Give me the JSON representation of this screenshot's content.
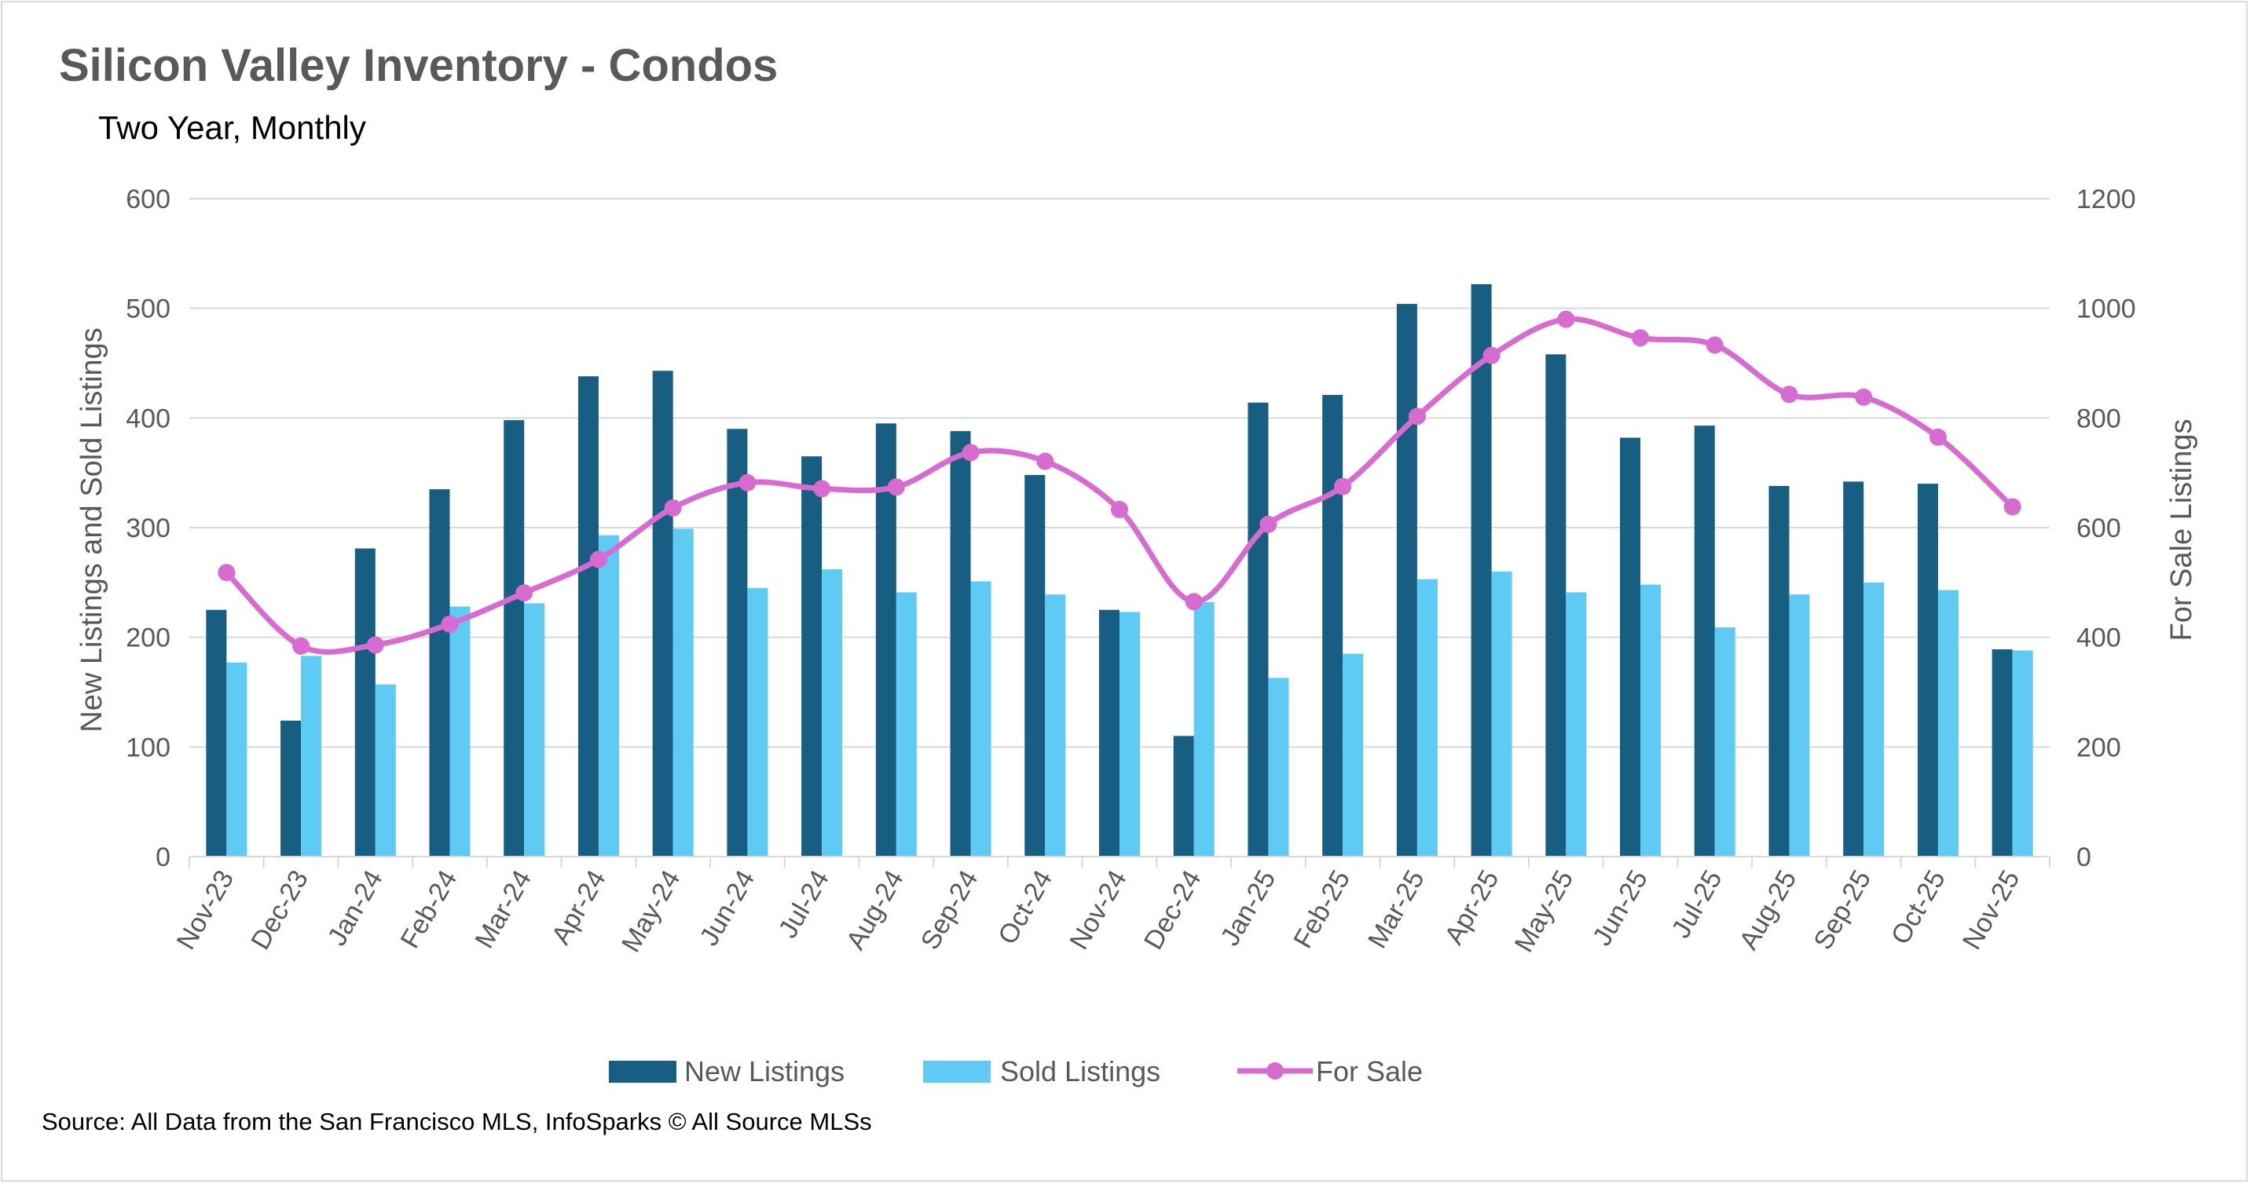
{
  "colors": {
    "new_listings": "#175e82",
    "sold_listings": "#5fcbf4",
    "for_sale": "#d86bd2",
    "grid": "#d9d9d9",
    "text": "#595959"
  },
  "source": "Source: All Data from the San Francisco MLS, InfoSparks © All Source MLSs",
  "chart_data": {
    "type": "bar",
    "title": "Silicon Valley Inventory - Condos",
    "subtitle": "Two Year, Monthly",
    "ylabel": "New Listings and Sold Listings",
    "y2label": "For Sale Listings",
    "ylim": [
      0,
      600
    ],
    "y2lim": [
      0,
      1200
    ],
    "yticks": [
      0,
      100,
      200,
      300,
      400,
      500,
      600
    ],
    "y2ticks": [
      0,
      200,
      400,
      600,
      800,
      1000,
      1200
    ],
    "grid": true,
    "legend_position": "bottom",
    "categories": [
      "Nov-23",
      "Dec-23",
      "Jan-24",
      "Feb-24",
      "Mar-24",
      "Apr-24",
      "May-24",
      "Jun-24",
      "Jul-24",
      "Aug-24",
      "Sep-24",
      "Oct-24",
      "Nov-24",
      "Dec-24",
      "Jan-25",
      "Feb-25",
      "Mar-25",
      "Apr-25",
      "May-25",
      "Jun-25",
      "Jul-25",
      "Aug-25",
      "Sep-25",
      "Oct-25",
      "Nov-25"
    ],
    "series": [
      {
        "name": "New Listings",
        "type": "bar",
        "axis": "left",
        "values": [
          225,
          124,
          281,
          335,
          398,
          438,
          443,
          390,
          365,
          395,
          388,
          348,
          225,
          110,
          414,
          421,
          504,
          522,
          458,
          382,
          393,
          338,
          342,
          340,
          189
        ]
      },
      {
        "name": "Sold Listings",
        "type": "bar",
        "axis": "left",
        "values": [
          177,
          183,
          157,
          228,
          231,
          293,
          299,
          245,
          262,
          241,
          251,
          239,
          223,
          232,
          163,
          185,
          253,
          260,
          241,
          248,
          209,
          239,
          250,
          243,
          188
        ]
      },
      {
        "name": "For Sale",
        "type": "line",
        "axis": "right",
        "values": [
          518,
          384,
          386,
          424,
          481,
          542,
          636,
          682,
          671,
          674,
          737,
          721,
          633,
          465,
          606,
          675,
          803,
          914,
          980,
          946,
          933,
          843,
          838,
          765,
          638
        ]
      }
    ]
  }
}
